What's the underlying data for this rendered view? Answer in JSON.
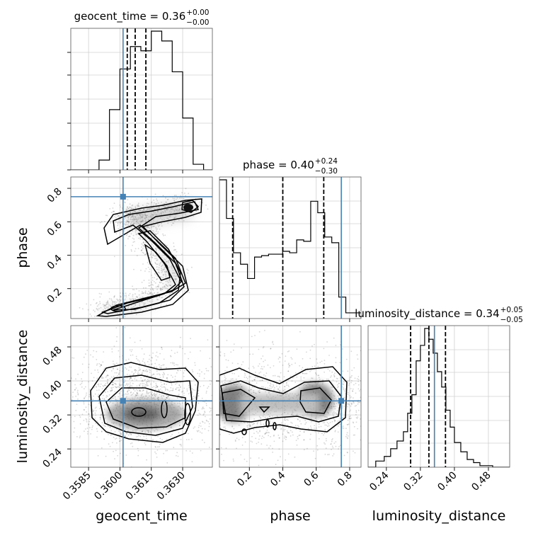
{
  "chart_data": {
    "type": "corner",
    "parameters": [
      "geocent_time",
      "phase",
      "luminosity_distance"
    ],
    "truth_color": "#4682b4",
    "truths": {
      "geocent_time": 0.36015,
      "phase": 0.75,
      "luminosity_distance": 0.353
    },
    "titles": {
      "geocent_time": {
        "prefix": "geocent_time = 0.36",
        "sup": "+0.00",
        "sub": "−0.00"
      },
      "phase": {
        "prefix": "phase = 0.40",
        "sup": "+0.24",
        "sub": "−0.30"
      },
      "luminosity_distance": {
        "prefix": "luminosity_distance = 0.34",
        "sup": "+0.05",
        "sub": "−0.05"
      }
    },
    "axes": {
      "geocent_time": {
        "label": "geocent_time",
        "range": [
          0.35765,
          0.36442
        ],
        "ticks": [
          0.3585,
          0.36,
          0.3615,
          0.363
        ],
        "tick_labels": [
          "0.3585",
          "0.3600",
          "0.3615",
          "0.3630"
        ]
      },
      "phase": {
        "label": "phase",
        "range": [
          0.021,
          0.868
        ],
        "ticks": [
          0.2,
          0.4,
          0.6,
          0.8
        ],
        "tick_labels": [
          "0.2",
          "0.4",
          "0.6",
          "0.8"
        ]
      },
      "luminosity_distance": {
        "label": "luminosity_distance",
        "range": [
          0.197,
          0.53
        ],
        "ticks": [
          0.24,
          0.32,
          0.4,
          0.48
        ],
        "tick_labels": [
          "0.24",
          "0.32",
          "0.40",
          "0.48"
        ]
      }
    },
    "quantiles": {
      "geocent_time": [
        0.36035,
        0.36073,
        0.36124
      ],
      "phase": [
        0.1,
        0.4,
        0.645
      ],
      "luminosity_distance": [
        0.297,
        0.34,
        0.379
      ]
    },
    "histograms": {
      "geocent_time": {
        "edges": [
          0.35765,
          0.359,
          0.3595,
          0.36,
          0.3605,
          0.361,
          0.3615,
          0.362,
          0.3625,
          0.363,
          0.3635,
          0.364,
          0.36442
        ],
        "values": [
          0,
          0.07,
          0.43,
          0.72,
          0.88,
          0.85,
          0.99,
          0.92,
          0.7,
          0.37,
          0.04,
          0
        ]
      },
      "phase": {
        "edges": [
          0.021,
          0.063,
          0.105,
          0.147,
          0.189,
          0.231,
          0.273,
          0.315,
          0.357,
          0.399,
          0.441,
          0.483,
          0.525,
          0.567,
          0.609,
          0.651,
          0.693,
          0.735,
          0.777,
          0.819,
          0.868
        ],
        "values": [
          0.97,
          0.7,
          0.46,
          0.38,
          0.28,
          0.43,
          0.44,
          0.45,
          0.45,
          0.47,
          0.46,
          0.55,
          0.54,
          0.82,
          0.74,
          0.57,
          0.53,
          0.15,
          0.04,
          0.04
        ]
      },
      "luminosity_distance": {
        "edges": [
          0.197,
          0.215,
          0.235,
          0.25,
          0.265,
          0.28,
          0.29,
          0.3,
          0.31,
          0.32,
          0.33,
          0.34,
          0.35,
          0.36,
          0.37,
          0.38,
          0.39,
          0.4,
          0.415,
          0.43,
          0.445,
          0.46,
          0.475,
          0.49,
          0.53
        ],
        "values": [
          0,
          0.04,
          0.07,
          0.12,
          0.17,
          0.23,
          0.35,
          0.47,
          0.69,
          0.79,
          0.9,
          0.83,
          0.74,
          0.62,
          0.52,
          0.37,
          0.26,
          0.16,
          0.1,
          0.05,
          0.03,
          0.01,
          0.01,
          0
        ]
      }
    }
  }
}
